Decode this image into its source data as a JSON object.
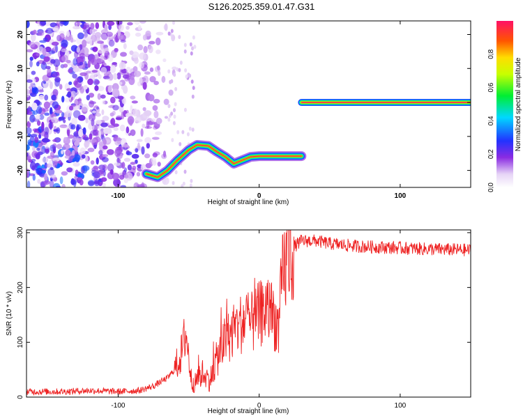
{
  "title": "S126.2025.359.01.47.G31",
  "chart_data": [
    {
      "type": "heatmap",
      "xlabel": "Height of straight line (km)",
      "ylabel": "Frequency (Hz)",
      "xlim": [
        -165,
        150
      ],
      "ylim": [
        -25,
        24
      ],
      "x_ticks": [
        -100,
        0,
        100
      ],
      "y_ticks": [
        20,
        10,
        0,
        -10,
        -20
      ],
      "colorbar": {
        "label": "Normalized spectral amplitude",
        "range": [
          0,
          1
        ],
        "ticks": [
          "0.0",
          "0.2",
          "0.4",
          "0.6",
          "0.8"
        ],
        "tick_values": [
          0,
          0.2,
          0.4,
          0.6,
          0.8
        ]
      },
      "noise_region_x": [
        -165,
        -55
      ],
      "track": [
        {
          "x": -80,
          "f": -21
        },
        {
          "x": -72,
          "f": -22
        },
        {
          "x": -65,
          "f": -20
        },
        {
          "x": -58,
          "f": -17
        },
        {
          "x": -50,
          "f": -14
        },
        {
          "x": -44,
          "f": -12.5
        },
        {
          "x": -36,
          "f": -12.8
        },
        {
          "x": -30,
          "f": -14.5
        },
        {
          "x": -24,
          "f": -16
        },
        {
          "x": -18,
          "f": -18
        },
        {
          "x": -12,
          "f": -17
        },
        {
          "x": -6,
          "f": -16
        },
        {
          "x": 0,
          "f": -15.8
        },
        {
          "x": 10,
          "f": -15.8
        },
        {
          "x": 20,
          "f": -15.8
        },
        {
          "x": 30,
          "f": -15.8
        }
      ],
      "carrier": {
        "x_start": 30,
        "x_end": 150,
        "f": 0
      }
    },
    {
      "type": "line",
      "xlabel": "Height of straight line (km)",
      "ylabel": "SNR (10 * v/v)",
      "xlim": [
        -165,
        150
      ],
      "ylim": [
        0,
        305
      ],
      "x_ticks": [
        -100,
        0,
        100
      ],
      "y_ticks": [
        0,
        100,
        200,
        300
      ],
      "series": [
        {
          "name": "SNR",
          "color": "#ee2222",
          "x": [
            -165,
            -140,
            -120,
            -100,
            -85,
            -75,
            -65,
            -60,
            -55,
            -52,
            -48,
            -45,
            -40,
            -35,
            -30,
            -25,
            -20,
            -15,
            -10,
            -5,
            0,
            5,
            10,
            14,
            16,
            20,
            25,
            30,
            40,
            50,
            70,
            100,
            120,
            150
          ],
          "y": [
            10,
            10,
            12,
            10,
            12,
            20,
            35,
            50,
            80,
            120,
            30,
            25,
            45,
            30,
            70,
            100,
            115,
            130,
            140,
            135,
            150,
            160,
            150,
            120,
            210,
            255,
            275,
            285,
            285,
            280,
            275,
            272,
            270,
            268
          ]
        }
      ]
    }
  ]
}
